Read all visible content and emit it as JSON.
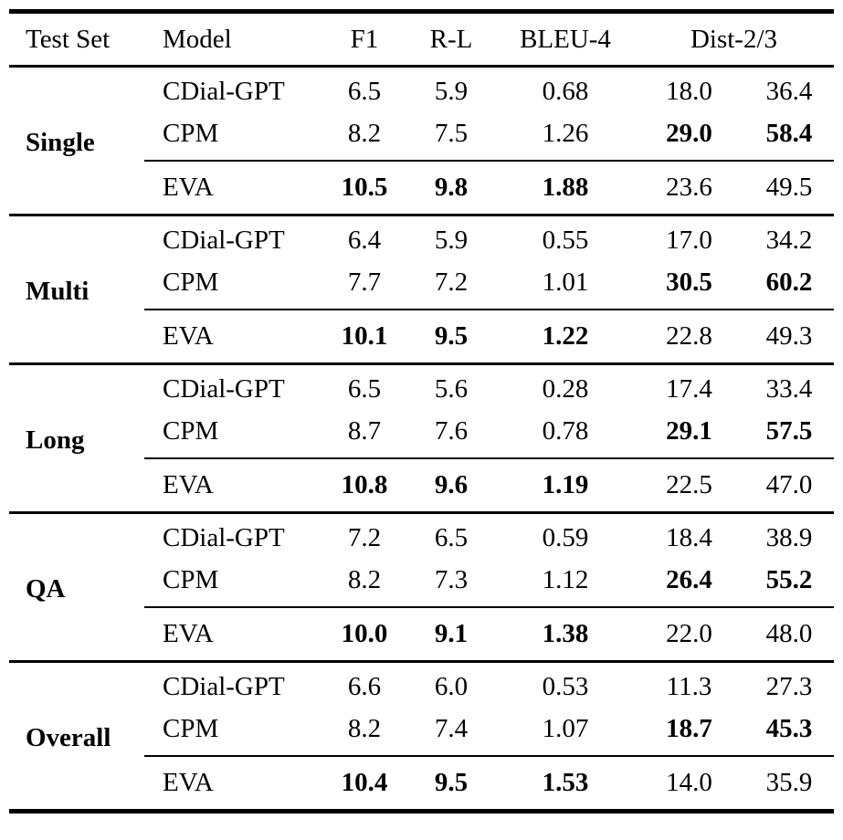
{
  "colors": {
    "text": "#000000",
    "rule": "#000000",
    "background": "#ffffff"
  },
  "table": {
    "headers": {
      "test_set": "Test Set",
      "model": "Model",
      "f1": "F1",
      "rl": "R-L",
      "bleu4": "BLEU-4",
      "dist": "Dist-2/3"
    },
    "sections": [
      {
        "test_set": "Single",
        "rows": [
          {
            "model": "CDial-GPT",
            "f1": "6.5",
            "rl": "5.9",
            "bleu4": "0.68",
            "dist2": "18.0",
            "dist3": "36.4",
            "bold": []
          },
          {
            "model": "CPM",
            "f1": "8.2",
            "rl": "7.5",
            "bleu4": "1.26",
            "dist2": "29.0",
            "dist3": "58.4",
            "bold": [
              "dist2",
              "dist3"
            ]
          },
          {
            "model": "EVA",
            "f1": "10.5",
            "rl": "9.8",
            "bleu4": "1.88",
            "dist2": "23.6",
            "dist3": "49.5",
            "bold": [
              "f1",
              "rl",
              "bleu4"
            ]
          }
        ]
      },
      {
        "test_set": "Multi",
        "rows": [
          {
            "model": "CDial-GPT",
            "f1": "6.4",
            "rl": "5.9",
            "bleu4": "0.55",
            "dist2": "17.0",
            "dist3": "34.2",
            "bold": []
          },
          {
            "model": "CPM",
            "f1": "7.7",
            "rl": "7.2",
            "bleu4": "1.01",
            "dist2": "30.5",
            "dist3": "60.2",
            "bold": [
              "dist2",
              "dist3"
            ]
          },
          {
            "model": "EVA",
            "f1": "10.1",
            "rl": "9.5",
            "bleu4": "1.22",
            "dist2": "22.8",
            "dist3": "49.3",
            "bold": [
              "f1",
              "rl",
              "bleu4"
            ]
          }
        ]
      },
      {
        "test_set": "Long",
        "rows": [
          {
            "model": "CDial-GPT",
            "f1": "6.5",
            "rl": "5.6",
            "bleu4": "0.28",
            "dist2": "17.4",
            "dist3": "33.4",
            "bold": []
          },
          {
            "model": "CPM",
            "f1": "8.7",
            "rl": "7.6",
            "bleu4": "0.78",
            "dist2": "29.1",
            "dist3": "57.5",
            "bold": [
              "dist2",
              "dist3"
            ]
          },
          {
            "model": "EVA",
            "f1": "10.8",
            "rl": "9.6",
            "bleu4": "1.19",
            "dist2": "22.5",
            "dist3": "47.0",
            "bold": [
              "f1",
              "rl",
              "bleu4"
            ]
          }
        ]
      },
      {
        "test_set": "QA",
        "rows": [
          {
            "model": "CDial-GPT",
            "f1": "7.2",
            "rl": "6.5",
            "bleu4": "0.59",
            "dist2": "18.4",
            "dist3": "38.9",
            "bold": []
          },
          {
            "model": "CPM",
            "f1": "8.2",
            "rl": "7.3",
            "bleu4": "1.12",
            "dist2": "26.4",
            "dist3": "55.2",
            "bold": [
              "dist2",
              "dist3"
            ]
          },
          {
            "model": "EVA",
            "f1": "10.0",
            "rl": "9.1",
            "bleu4": "1.38",
            "dist2": "22.0",
            "dist3": "48.0",
            "bold": [
              "f1",
              "rl",
              "bleu4"
            ]
          }
        ]
      },
      {
        "test_set": "Overall",
        "rows": [
          {
            "model": "CDial-GPT",
            "f1": "6.6",
            "rl": "6.0",
            "bleu4": "0.53",
            "dist2": "11.3",
            "dist3": "27.3",
            "bold": []
          },
          {
            "model": "CPM",
            "f1": "8.2",
            "rl": "7.4",
            "bleu4": "1.07",
            "dist2": "18.7",
            "dist3": "45.3",
            "bold": [
              "dist2",
              "dist3"
            ]
          },
          {
            "model": "EVA",
            "f1": "10.4",
            "rl": "9.5",
            "bleu4": "1.53",
            "dist2": "14.0",
            "dist3": "35.9",
            "bold": [
              "f1",
              "rl",
              "bleu4"
            ]
          }
        ]
      }
    ]
  }
}
